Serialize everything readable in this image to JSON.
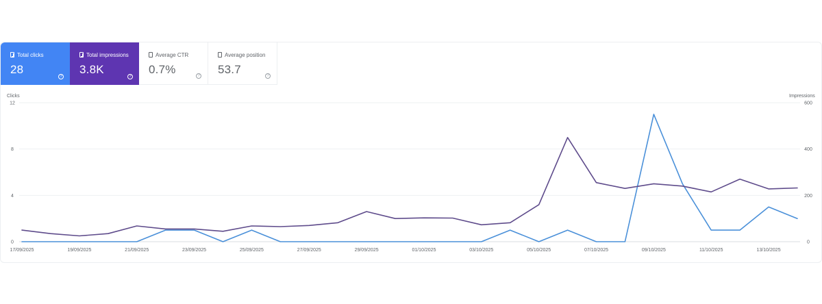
{
  "cards": [
    {
      "label": "Total clicks",
      "value": "28",
      "style": "blue",
      "color": "#4285f4"
    },
    {
      "label": "Total impressions",
      "value": "3.8K",
      "style": "purple",
      "color": "#5e35b1"
    },
    {
      "label": "Average CTR",
      "value": "0.7%",
      "style": "plain"
    },
    {
      "label": "Average position",
      "value": "53.7",
      "style": "plain"
    }
  ],
  "help_glyph": "?",
  "chart_data": {
    "type": "line",
    "ylabel_left": "Clicks",
    "ylabel_right": "Impressions",
    "y_left_ticks": [
      "0",
      "4",
      "8",
      "12"
    ],
    "y_right_ticks": [
      "0",
      "200",
      "400",
      "600"
    ],
    "ylim_left": [
      0,
      12
    ],
    "ylim_right": [
      0,
      600
    ],
    "x_tick_labels": [
      "17/09/2025",
      "19/09/2025",
      "21/09/2025",
      "23/09/2025",
      "25/09/2025",
      "27/09/2025",
      "29/09/2025",
      "01/10/2025",
      "03/10/2025",
      "05/10/2025",
      "07/10/2025",
      "09/10/2025",
      "11/10/2025",
      "13/10/2025"
    ],
    "x_dates": [
      "17/09/2025",
      "18/09/2025",
      "19/09/2025",
      "20/09/2025",
      "21/09/2025",
      "22/09/2025",
      "23/09/2025",
      "24/09/2025",
      "25/09/2025",
      "26/09/2025",
      "27/09/2025",
      "28/09/2025",
      "29/09/2025",
      "30/09/2025",
      "01/10/2025",
      "02/10/2025",
      "03/10/2025",
      "04/10/2025",
      "05/10/2025",
      "06/10/2025",
      "07/10/2025",
      "08/10/2025",
      "09/10/2025",
      "10/10/2025",
      "11/10/2025",
      "12/10/2025",
      "13/10/2025",
      "14/10/2025"
    ],
    "grid": true,
    "series": [
      {
        "axis": "left",
        "color": "#4a90d9",
        "values": [
          0,
          0,
          0,
          0,
          0,
          1,
          1,
          0,
          1,
          0,
          0,
          0,
          0,
          0,
          0,
          0,
          0,
          1,
          0,
          1,
          0,
          0,
          11,
          5,
          1,
          1,
          3,
          2
        ]
      },
      {
        "axis": "right",
        "color": "#5e4b8b",
        "values": [
          50,
          35,
          25,
          35,
          68,
          55,
          55,
          45,
          68,
          65,
          70,
          82,
          130,
          100,
          103,
          102,
          73,
          82,
          160,
          450,
          255,
          230,
          250,
          240,
          215,
          270,
          228,
          232
        ]
      }
    ]
  }
}
